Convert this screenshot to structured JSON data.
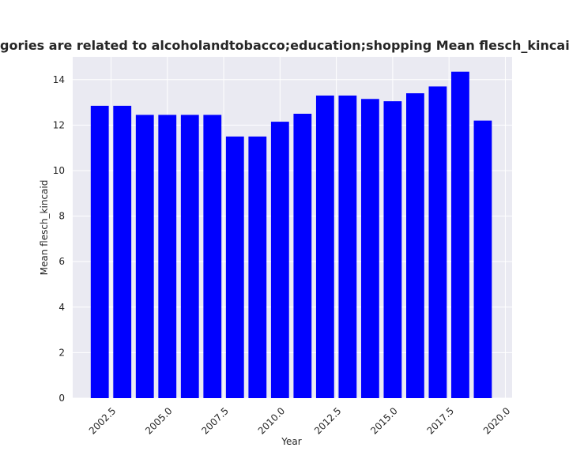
{
  "chart_data": {
    "type": "bar",
    "title": "gories are related to alcoholandtobacco;education;shopping Mean flesch_kincaid in privacy po",
    "x": [
      2002,
      2003,
      2004,
      2005,
      2006,
      2007,
      2008,
      2009,
      2010,
      2011,
      2012,
      2013,
      2014,
      2015,
      2016,
      2017,
      2018,
      2019
    ],
    "values": [
      12.85,
      12.85,
      12.45,
      12.45,
      12.45,
      12.45,
      11.5,
      11.5,
      12.15,
      12.5,
      13.3,
      13.3,
      13.15,
      13.05,
      13.4,
      13.7,
      14.35,
      12.2
    ],
    "color": "#0000ff",
    "xlabel": "Year",
    "ylabel": "Mean flesch_kincaid",
    "xlim": [
      2000.8,
      2020.3
    ],
    "xticks": [
      2002.5,
      {
        "value": 2005,
        "label": "2005.0"
      },
      2007.5,
      {
        "value": 2010,
        "label": "2010.0"
      },
      2012.5,
      {
        "value": 2015,
        "label": "2015.0"
      },
      2017.5,
      {
        "value": 2020,
        "label": "2020.0"
      }
    ],
    "ylim": [
      0,
      15
    ],
    "yticks": [
      0,
      2,
      4,
      6,
      8,
      10,
      12,
      14
    ],
    "grid": true
  }
}
